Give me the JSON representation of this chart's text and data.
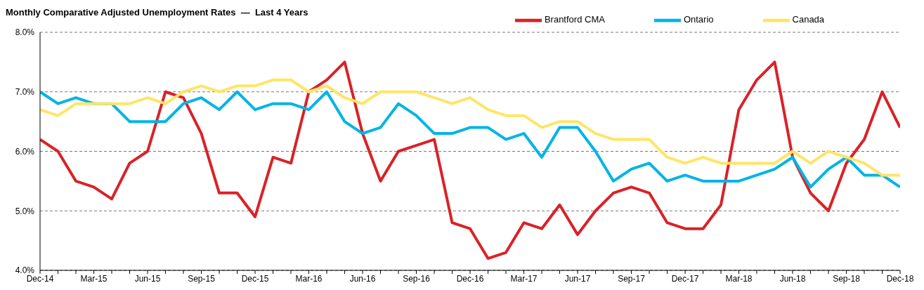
{
  "chart_data": {
    "type": "line",
    "title": "Monthly Comparative Adjusted Unemployment Rates  —  Last 4 Years",
    "categories": [
      "Dec-14",
      null,
      null,
      "Mar-15",
      null,
      null,
      "Jun-15",
      null,
      null,
      "Sep-15",
      null,
      null,
      "Dec-15",
      null,
      null,
      "Mar-16",
      null,
      null,
      "Jun-16",
      null,
      null,
      "Sep-16",
      null,
      null,
      "Dec-16",
      null,
      null,
      "Mar-17",
      null,
      null,
      "Jun-17",
      null,
      null,
      "Sep-17",
      null,
      null,
      "Dec-17",
      null,
      null,
      "Mar-18",
      null,
      null,
      "Jun-18",
      null,
      null,
      "Sep-18",
      null,
      null,
      "Dec-18"
    ],
    "series": [
      {
        "name": "Brantford CMA",
        "color": "#d92228",
        "values": [
          6.2,
          6.0,
          5.5,
          5.4,
          5.2,
          5.8,
          6.0,
          7.0,
          6.9,
          6.3,
          5.3,
          5.3,
          4.9,
          5.9,
          5.8,
          7.0,
          7.2,
          7.5,
          6.3,
          5.5,
          6.0,
          6.1,
          6.2,
          4.8,
          4.7,
          4.2,
          4.3,
          4.8,
          4.7,
          5.1,
          4.6,
          5.0,
          5.3,
          5.4,
          5.3,
          4.8,
          4.7,
          4.7,
          5.1,
          6.7,
          7.2,
          7.5,
          5.9,
          5.3,
          5.0,
          5.8,
          6.2,
          7.0,
          6.4
        ]
      },
      {
        "name": "Ontario",
        "color": "#00b4e6",
        "values": [
          7.0,
          6.8,
          6.9,
          6.8,
          6.8,
          6.5,
          6.5,
          6.5,
          6.8,
          6.9,
          6.7,
          7.0,
          6.7,
          6.8,
          6.8,
          6.7,
          7.0,
          6.5,
          6.3,
          6.4,
          6.8,
          6.6,
          6.3,
          6.3,
          6.4,
          6.4,
          6.2,
          6.3,
          5.9,
          6.4,
          6.4,
          6.0,
          5.5,
          5.7,
          5.8,
          5.5,
          5.6,
          5.5,
          5.5,
          5.5,
          5.6,
          5.7,
          5.9,
          5.4,
          5.7,
          5.9,
          5.6,
          5.6,
          5.4
        ]
      },
      {
        "name": "Canada",
        "color": "#ffe566",
        "values": [
          6.7,
          6.6,
          6.8,
          6.8,
          6.8,
          6.8,
          6.9,
          6.8,
          7.0,
          7.1,
          7.0,
          7.1,
          7.1,
          7.2,
          7.2,
          7.0,
          7.1,
          6.9,
          6.8,
          7.0,
          7.0,
          7.0,
          6.9,
          6.8,
          6.9,
          6.7,
          6.6,
          6.6,
          6.4,
          6.5,
          6.5,
          6.3,
          6.2,
          6.2,
          6.2,
          5.9,
          5.8,
          5.9,
          5.8,
          5.8,
          5.8,
          5.8,
          6.0,
          5.8,
          6.0,
          5.9,
          5.8,
          5.6,
          5.6
        ]
      }
    ],
    "ylim": [
      4.0,
      8.0
    ],
    "yticks": [
      {
        "value": 4.0,
        "label": "4.0%"
      },
      {
        "value": 5.0,
        "label": "5.0%"
      },
      {
        "value": 6.0,
        "label": "6.0%"
      },
      {
        "value": 7.0,
        "label": "7.0%"
      },
      {
        "value": 8.0,
        "label": "8.0%"
      }
    ],
    "grid": "y",
    "legend": "top right",
    "marker": "none",
    "line_style": "solid"
  }
}
